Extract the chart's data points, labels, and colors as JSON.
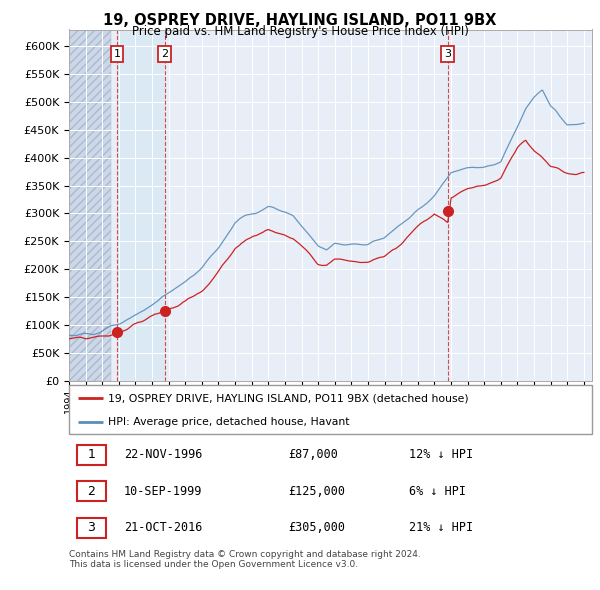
{
  "title": "19, OSPREY DRIVE, HAYLING ISLAND, PO11 9BX",
  "subtitle": "Price paid vs. HM Land Registry's House Price Index (HPI)",
  "xlim_start": 1994.0,
  "xlim_end": 2025.5,
  "ylim_min": 0,
  "ylim_max": 630000,
  "yticks": [
    0,
    50000,
    100000,
    150000,
    200000,
    250000,
    300000,
    350000,
    400000,
    450000,
    500000,
    550000,
    600000
  ],
  "ytick_labels": [
    "£0",
    "£50K",
    "£100K",
    "£150K",
    "£200K",
    "£250K",
    "£300K",
    "£350K",
    "£400K",
    "£450K",
    "£500K",
    "£550K",
    "£600K"
  ],
  "hpi_color": "#5b8db8",
  "price_color": "#cc2222",
  "background_plot": "#e8eef8",
  "hatch_color": "#c8d4e8",
  "sale_band_color": "#dde8f5",
  "sales": [
    {
      "year": 1996.9,
      "price": 87000,
      "label": "1"
    },
    {
      "year": 1999.75,
      "price": 125000,
      "label": "2"
    },
    {
      "year": 2016.8,
      "price": 305000,
      "label": "3"
    }
  ],
  "legend_entries": [
    {
      "label": "19, OSPREY DRIVE, HAYLING ISLAND, PO11 9BX (detached house)",
      "color": "#cc2222"
    },
    {
      "label": "HPI: Average price, detached house, Havant",
      "color": "#5b8db8"
    }
  ],
  "table_rows": [
    {
      "num": "1",
      "date": "22-NOV-1996",
      "price": "£87,000",
      "pct": "12% ↓ HPI"
    },
    {
      "num": "2",
      "date": "10-SEP-1999",
      "price": "£125,000",
      "pct": "6% ↓ HPI"
    },
    {
      "num": "3",
      "date": "21-OCT-2016",
      "price": "£305,000",
      "pct": "21% ↓ HPI"
    }
  ],
  "footer": "Contains HM Land Registry data © Crown copyright and database right 2024.\nThis data is licensed under the Open Government Licence v3.0."
}
